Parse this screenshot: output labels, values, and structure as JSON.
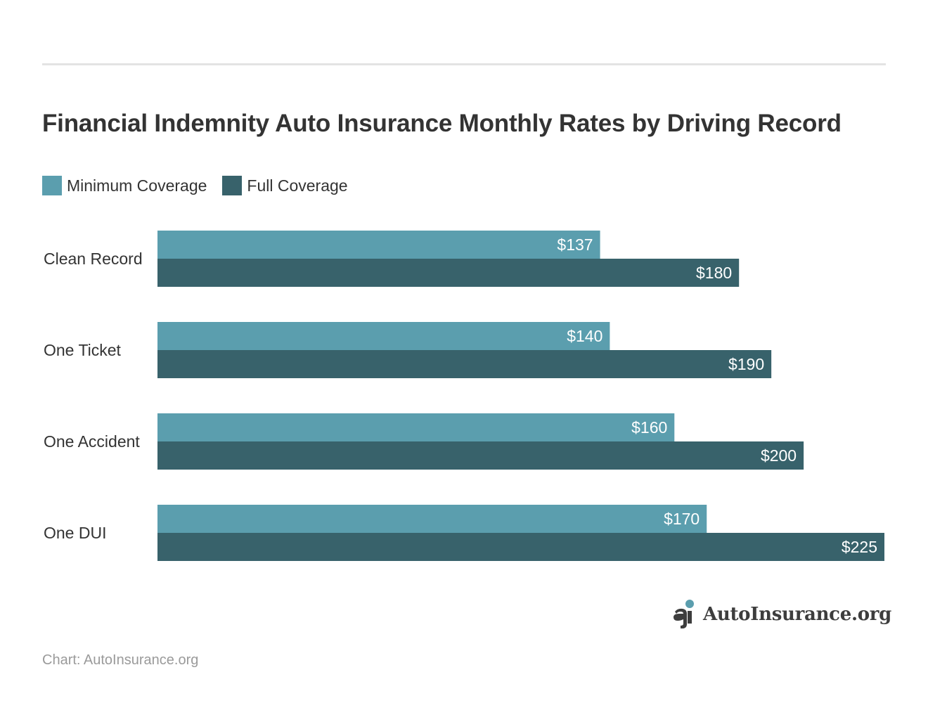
{
  "title": "Financial Indemnity Auto Insurance Monthly Rates by Driving Record",
  "colors": {
    "minimum": "#5b9eae",
    "full": "#38626b",
    "label_text": "#ffffff"
  },
  "source": "Chart: AutoInsurance.org",
  "brand": {
    "name": "AutoInsurance.org",
    "icon": "autoinsurance-logo-icon"
  },
  "chart_data": {
    "type": "bar",
    "orientation": "horizontal",
    "title": "Financial Indemnity Auto Insurance Monthly Rates by Driving Record",
    "categories": [
      "Clean Record",
      "One Ticket",
      "One Accident",
      "One DUI"
    ],
    "series": [
      {
        "name": "Minimum Coverage",
        "values": [
          137,
          140,
          160,
          170
        ],
        "labels": [
          "$137",
          "$140",
          "$160",
          "$170"
        ]
      },
      {
        "name": "Full Coverage",
        "values": [
          180,
          190,
          200,
          225
        ],
        "labels": [
          "$180",
          "$190",
          "$200",
          "$225"
        ]
      }
    ],
    "xlim": [
      0,
      225
    ],
    "grid": false,
    "legend": "top-left",
    "xlabel": "",
    "ylabel": ""
  }
}
